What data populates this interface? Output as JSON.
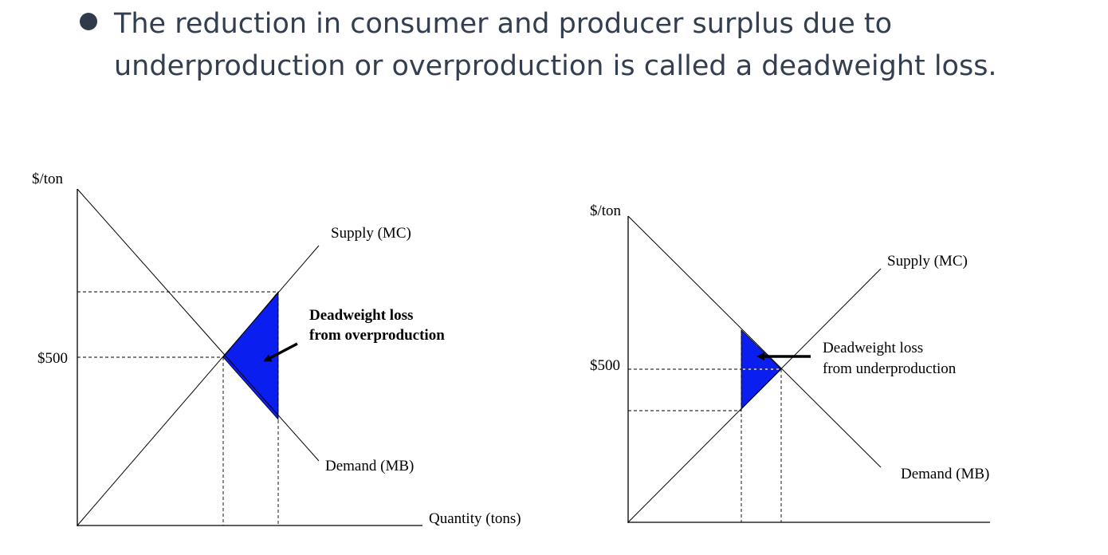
{
  "bullet": {
    "text": "The reduction in consumer and producer surplus due to underproduction or overproduction is called a deadweight loss."
  },
  "colors": {
    "text": "#333f50",
    "bullet": "#2f3a4a",
    "deadweight_fill": "#0a1ef0"
  },
  "diagram_left": {
    "y_axis_label": "$/ton",
    "x_axis_label": "Quantity (tons)",
    "price_tick": "$500",
    "supply_label": "Supply (MC)",
    "demand_label": "Demand (MB)",
    "dwl_label_line1": "Deadweight loss",
    "dwl_label_line2": "from overproduction"
  },
  "diagram_right": {
    "y_axis_label": "$/ton",
    "price_tick": "$500",
    "supply_label": "Supply (MC)",
    "demand_label": "Demand (MB)",
    "dwl_label_line1": "Deadweight loss",
    "dwl_label_line2": "from underproduction"
  }
}
